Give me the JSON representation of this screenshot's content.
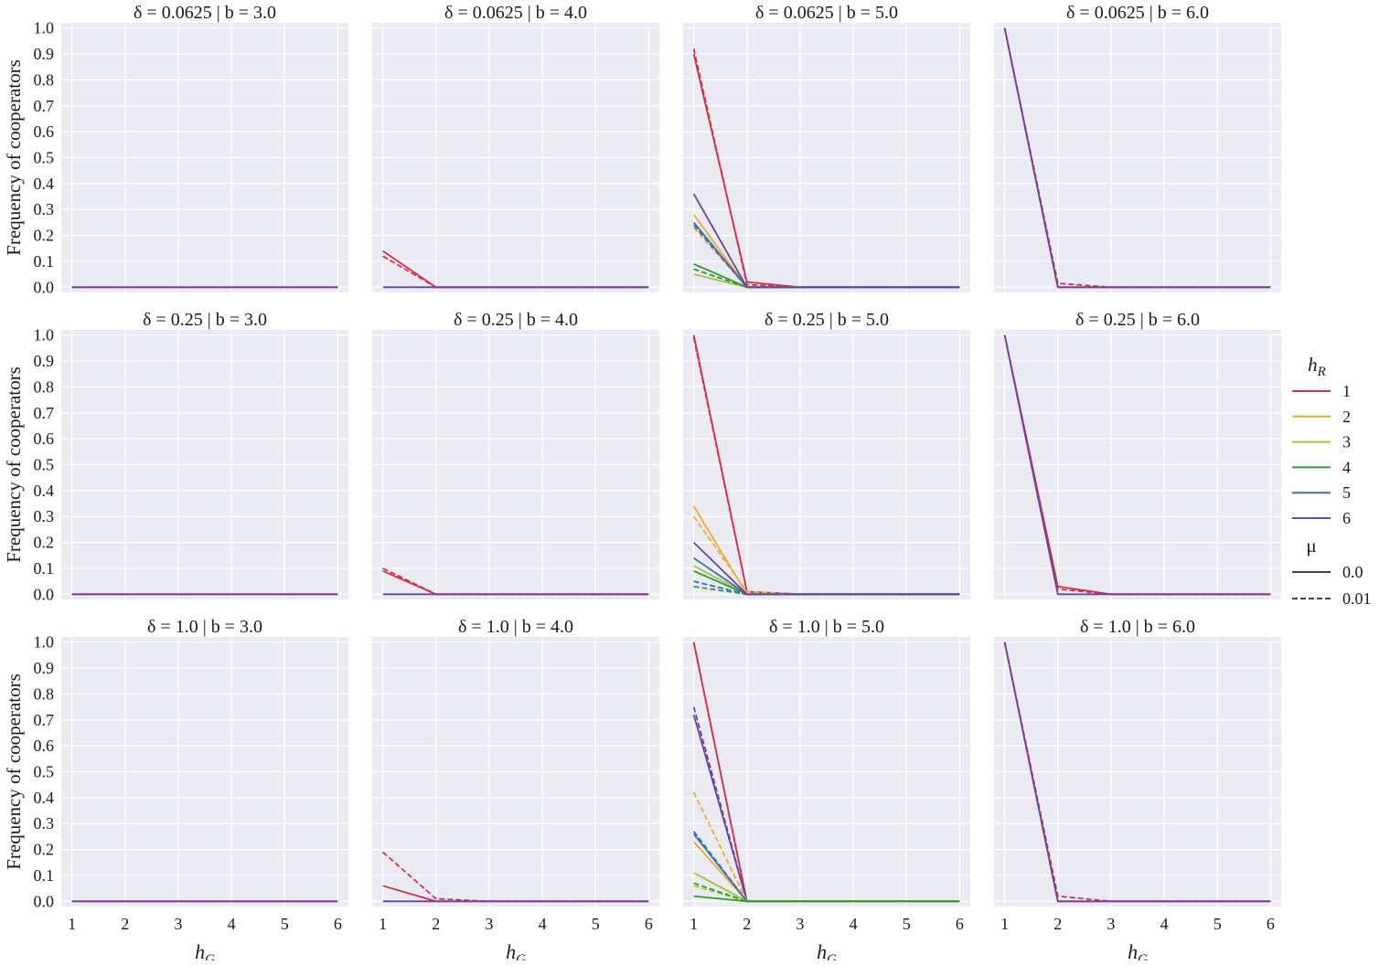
{
  "chart_data": {
    "type": "line",
    "layout": "facet-grid",
    "rows": [
      "δ = 0.0625",
      "δ = 0.25",
      "δ = 1.0"
    ],
    "cols": [
      "b = 3.0",
      "b = 4.0",
      "b = 5.0",
      "b = 6.0"
    ],
    "ylabel": "Frequency of cooperators",
    "xlabel": {
      "base": "h",
      "sub": "G"
    },
    "x": [
      1,
      2,
      3,
      4,
      5,
      6
    ],
    "xlim": [
      0.8,
      6.2
    ],
    "ylim": [
      -0.02,
      1.02
    ],
    "yticks": [
      0.0,
      0.1,
      0.2,
      0.3,
      0.4,
      0.5,
      0.6,
      0.7,
      0.8,
      0.9,
      1.0
    ],
    "xticks": [
      1,
      2,
      3,
      4,
      5,
      6
    ],
    "grid": true,
    "legend": {
      "placement": "right",
      "hue_title": {
        "base": "h",
        "sub": "R"
      },
      "hue": [
        {
          "label": "1",
          "color": "#d62f45"
        },
        {
          "label": "2",
          "color": "#eeaa2b"
        },
        {
          "label": "3",
          "color": "#a9c23a"
        },
        {
          "label": "4",
          "color": "#2f9e2f"
        },
        {
          "label": "5",
          "color": "#3b6fb6"
        },
        {
          "label": "6",
          "color": "#6a44a0"
        }
      ],
      "style_title": "μ",
      "style": [
        {
          "label": "0.0",
          "dash": "solid"
        },
        {
          "label": "0.01",
          "dash": "dashed"
        }
      ]
    },
    "panels": [
      {
        "title": "δ = 0.0625 | b = 3.0",
        "series": [
          {
            "hR": 1,
            "mu": "0.0",
            "values": [
              0,
              0,
              0,
              0,
              0,
              0
            ]
          },
          {
            "hR": 6,
            "mu": "0.0",
            "values": [
              0,
              0,
              0,
              0,
              0,
              0
            ]
          }
        ]
      },
      {
        "title": "δ = 0.0625 | b = 4.0",
        "series": [
          {
            "hR": 1,
            "mu": "0.01",
            "values": [
              0.12,
              0,
              0,
              0,
              0,
              0
            ]
          },
          {
            "hR": 1,
            "mu": "0.0",
            "values": [
              0.14,
              0,
              0,
              0,
              0,
              0
            ]
          },
          {
            "hR": 6,
            "mu": "0.0",
            "values": [
              0,
              0,
              0,
              0,
              0,
              0
            ]
          }
        ]
      },
      {
        "title": "δ = 0.0625 | b = 5.0",
        "series": [
          {
            "hR": 1,
            "mu": "0.01",
            "values": [
              0.92,
              0.01,
              0,
              0,
              0,
              0
            ]
          },
          {
            "hR": 1,
            "mu": "0.0",
            "values": [
              0.9,
              0.02,
              0,
              0,
              0,
              0
            ]
          },
          {
            "hR": 2,
            "mu": "0.0",
            "values": [
              0.28,
              0,
              0,
              0,
              0,
              0
            ]
          },
          {
            "hR": 2,
            "mu": "0.01",
            "values": [
              0.23,
              0,
              0,
              0,
              0,
              0
            ]
          },
          {
            "hR": 3,
            "mu": "0.0",
            "values": [
              0.05,
              0,
              0,
              0,
              0,
              0
            ]
          },
          {
            "hR": 4,
            "mu": "0.0",
            "values": [
              0.09,
              0,
              0,
              0,
              0,
              0
            ]
          },
          {
            "hR": 4,
            "mu": "0.01",
            "values": [
              0.07,
              0,
              0,
              0,
              0,
              0
            ]
          },
          {
            "hR": 5,
            "mu": "0.0",
            "values": [
              0.25,
              0,
              0,
              0,
              0,
              0
            ]
          },
          {
            "hR": 5,
            "mu": "0.01",
            "values": [
              0.24,
              0,
              0,
              0,
              0,
              0
            ]
          },
          {
            "hR": 6,
            "mu": "0.0",
            "values": [
              0.36,
              0,
              0,
              0,
              0,
              0
            ]
          }
        ]
      },
      {
        "title": "δ = 0.0625 | b = 6.0",
        "series": [
          {
            "hR": 1,
            "mu": "0.0",
            "values": [
              1.0,
              0,
              0,
              0,
              0,
              0
            ]
          },
          {
            "hR": 1,
            "mu": "0.01",
            "values": [
              1.0,
              0.015,
              0,
              0,
              0,
              0
            ]
          },
          {
            "hR": 6,
            "mu": "0.0",
            "values": [
              1.0,
              0,
              0,
              0,
              0,
              0
            ]
          }
        ]
      },
      {
        "title": "δ = 0.25 | b = 3.0",
        "series": [
          {
            "hR": 1,
            "mu": "0.0",
            "values": [
              0,
              0,
              0,
              0,
              0,
              0
            ]
          },
          {
            "hR": 6,
            "mu": "0.0",
            "values": [
              0,
              0,
              0,
              0,
              0,
              0
            ]
          }
        ]
      },
      {
        "title": "δ = 0.25 | b = 4.0",
        "series": [
          {
            "hR": 1,
            "mu": "0.01",
            "values": [
              0.1,
              0,
              0,
              0,
              0,
              0
            ]
          },
          {
            "hR": 1,
            "mu": "0.0",
            "values": [
              0.09,
              0,
              0,
              0,
              0,
              0
            ]
          },
          {
            "hR": 6,
            "mu": "0.0",
            "values": [
              0,
              0,
              0,
              0,
              0,
              0
            ]
          }
        ]
      },
      {
        "title": "δ = 0.25 | b = 5.0",
        "series": [
          {
            "hR": 1,
            "mu": "0.0",
            "values": [
              1.0,
              0.01,
              0,
              0,
              0,
              0
            ]
          },
          {
            "hR": 1,
            "mu": "0.01",
            "values": [
              0.99,
              0.01,
              0,
              0,
              0,
              0
            ]
          },
          {
            "hR": 2,
            "mu": "0.0",
            "values": [
              0.34,
              0,
              0,
              0,
              0,
              0
            ]
          },
          {
            "hR": 2,
            "mu": "0.01",
            "values": [
              0.3,
              0.01,
              0,
              0,
              0,
              0
            ]
          },
          {
            "hR": 3,
            "mu": "0.0",
            "values": [
              0.11,
              0,
              0,
              0,
              0,
              0
            ]
          },
          {
            "hR": 3,
            "mu": "0.01",
            "values": [
              0.05,
              0,
              0,
              0,
              0,
              0
            ]
          },
          {
            "hR": 4,
            "mu": "0.0",
            "values": [
              0.09,
              0,
              0,
              0,
              0,
              0
            ]
          },
          {
            "hR": 4,
            "mu": "0.01",
            "values": [
              0.03,
              0,
              0,
              0,
              0,
              0
            ]
          },
          {
            "hR": 5,
            "mu": "0.0",
            "values": [
              0.14,
              0,
              0,
              0,
              0,
              0
            ]
          },
          {
            "hR": 5,
            "mu": "0.01",
            "values": [
              0.05,
              0,
              0,
              0,
              0,
              0
            ]
          },
          {
            "hR": 6,
            "mu": "0.0",
            "values": [
              0.2,
              0,
              0,
              0,
              0,
              0
            ]
          }
        ]
      },
      {
        "title": "δ = 0.25 | b = 6.0",
        "series": [
          {
            "hR": 1,
            "mu": "0.0",
            "values": [
              1.0,
              0.03,
              0,
              0,
              0,
              0
            ]
          },
          {
            "hR": 1,
            "mu": "0.01",
            "values": [
              1.0,
              0.02,
              0,
              0,
              0,
              0
            ]
          },
          {
            "hR": 6,
            "mu": "0.0",
            "values": [
              1.0,
              0,
              0,
              0,
              0,
              0
            ]
          }
        ]
      },
      {
        "title": "δ = 1.0 | b = 3.0",
        "series": [
          {
            "hR": 1,
            "mu": "0.0",
            "values": [
              0,
              0,
              0,
              0,
              0,
              0
            ]
          },
          {
            "hR": 6,
            "mu": "0.0",
            "values": [
              0,
              0,
              0,
              0,
              0,
              0
            ]
          }
        ]
      },
      {
        "title": "δ = 1.0 | b = 4.0",
        "series": [
          {
            "hR": 1,
            "mu": "0.01",
            "values": [
              0.19,
              0.01,
              0,
              0,
              0,
              0
            ]
          },
          {
            "hR": 1,
            "mu": "0.0",
            "values": [
              0.06,
              0,
              0,
              0,
              0,
              0
            ]
          },
          {
            "hR": 6,
            "mu": "0.0",
            "values": [
              0,
              0,
              0,
              0,
              0,
              0
            ]
          }
        ]
      },
      {
        "title": "δ = 1.0 | b = 5.0",
        "series": [
          {
            "hR": 1,
            "mu": "0.0",
            "values": [
              1.0,
              0,
              0,
              0,
              0,
              0
            ]
          },
          {
            "hR": 1,
            "mu": "0.01",
            "values": [
              1.0,
              0,
              0,
              0,
              0,
              0
            ]
          },
          {
            "hR": 6,
            "mu": "0.01",
            "values": [
              0.75,
              0,
              0,
              0,
              0,
              0
            ]
          },
          {
            "hR": 6,
            "mu": "0.0",
            "values": [
              0.72,
              0,
              0,
              0,
              0,
              0
            ]
          },
          {
            "hR": 2,
            "mu": "0.01",
            "values": [
              0.42,
              0,
              0,
              0,
              0,
              0
            ]
          },
          {
            "hR": 2,
            "mu": "0.0",
            "values": [
              0.23,
              0,
              0,
              0,
              0,
              0
            ]
          },
          {
            "hR": 5,
            "mu": "0.01",
            "values": [
              0.27,
              0,
              0,
              0,
              0,
              0
            ]
          },
          {
            "hR": 5,
            "mu": "0.0",
            "values": [
              0.26,
              0,
              0,
              0,
              0,
              0
            ]
          },
          {
            "hR": 3,
            "mu": "0.0",
            "values": [
              0.11,
              0,
              0,
              0,
              0,
              0
            ]
          },
          {
            "hR": 3,
            "mu": "0.01",
            "values": [
              0.06,
              0,
              0,
              0,
              0,
              0
            ]
          },
          {
            "hR": 4,
            "mu": "0.01",
            "values": [
              0.07,
              0,
              0,
              0,
              0,
              0
            ]
          },
          {
            "hR": 4,
            "mu": "0.0",
            "values": [
              0.02,
              0,
              0,
              0,
              0,
              0
            ]
          }
        ]
      },
      {
        "title": "δ = 1.0 | b = 6.0",
        "series": [
          {
            "hR": 1,
            "mu": "0.0",
            "values": [
              1.0,
              0,
              0,
              0,
              0,
              0
            ]
          },
          {
            "hR": 1,
            "mu": "0.01",
            "values": [
              1.0,
              0.02,
              0,
              0,
              0,
              0
            ]
          },
          {
            "hR": 6,
            "mu": "0.0",
            "values": [
              1.0,
              0,
              0,
              0,
              0,
              0
            ]
          }
        ]
      }
    ]
  }
}
